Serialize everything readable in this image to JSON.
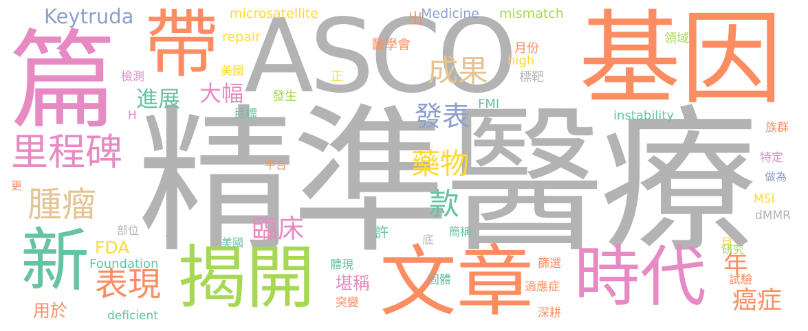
{
  "palette": {
    "gray": "#b3b3b3",
    "orange": "#fc8d62",
    "pink": "#e78ac3",
    "green": "#66c2a5",
    "lime": "#a6d854",
    "yellow": "#ffd92f",
    "tan": "#e5c494",
    "blue": "#8da0cb"
  },
  "words": [
    {
      "text": "精準醫療",
      "color": "#b3b3b3"
    },
    {
      "text": "ASCO",
      "color": "#b3b3b3"
    },
    {
      "text": "基因",
      "color": "#fc8d62"
    },
    {
      "text": "篇",
      "color": "#e78ac3"
    },
    {
      "text": "帶",
      "color": "#fc8d62"
    },
    {
      "text": "新",
      "color": "#66c2a5"
    },
    {
      "text": "揭開",
      "color": "#a6d854"
    },
    {
      "text": "文章",
      "color": "#fc8d62"
    },
    {
      "text": "時代",
      "color": "#e78ac3"
    },
    {
      "text": "里程碑",
      "color": "#e78ac3"
    },
    {
      "text": "腫瘤",
      "color": "#e5c494"
    },
    {
      "text": "表現",
      "color": "#fc8d62"
    },
    {
      "text": "臨床",
      "color": "#e78ac3"
    },
    {
      "text": "款",
      "color": "#66c2a5"
    },
    {
      "text": "藥物",
      "color": "#ffd92f"
    },
    {
      "text": "發表",
      "color": "#8da0cb"
    },
    {
      "text": "成果",
      "color": "#e5c494"
    },
    {
      "text": "大幅",
      "color": "#e78ac3"
    },
    {
      "text": "進展",
      "color": "#66c2a5"
    },
    {
      "text": "年",
      "color": "#fc8d62"
    },
    {
      "text": "癌症",
      "color": "#fc8d62"
    },
    {
      "text": "Keytruda",
      "color": "#8da0cb"
    },
    {
      "text": "microsatellite",
      "color": "#ffd92f"
    },
    {
      "text": "Medicine",
      "color": "#8da0cb"
    },
    {
      "text": "mismatch",
      "color": "#a6d854"
    },
    {
      "text": "出",
      "color": "#fc8d62"
    },
    {
      "text": "repair",
      "color": "#ffd92f"
    },
    {
      "text": "醫學會",
      "color": "#fc8d62"
    },
    {
      "text": "月份",
      "color": "#fc8d62"
    },
    {
      "text": "領域",
      "color": "#a6d854"
    },
    {
      "text": "high",
      "color": "#ffd92f"
    },
    {
      "text": "標靶",
      "color": "#b3b3b3"
    },
    {
      "text": "美國",
      "color": "#ffd92f"
    },
    {
      "text": "正",
      "color": "#ffd92f"
    },
    {
      "text": "檢測",
      "color": "#e78ac3"
    },
    {
      "text": "發生",
      "color": "#a6d854"
    },
    {
      "text": "FMI",
      "color": "#66c2a5"
    },
    {
      "text": "instability",
      "color": "#66c2a5"
    },
    {
      "text": "目標",
      "color": "#66c2a5"
    },
    {
      "text": "H",
      "color": "#e78ac3"
    },
    {
      "text": "族群",
      "color": "#fc8d62"
    },
    {
      "text": "特定",
      "color": "#e78ac3"
    },
    {
      "text": "平台",
      "color": "#fc8d62"
    },
    {
      "text": "做為",
      "color": "#8da0cb"
    },
    {
      "text": "更",
      "color": "#fc8d62"
    },
    {
      "text": "MSI",
      "color": "#ffd92f"
    },
    {
      "text": "dMMR",
      "color": "#b3b3b3"
    },
    {
      "text": "部位",
      "color": "#b3b3b3"
    },
    {
      "text": "首",
      "color": "#b3b3b3"
    },
    {
      "text": "許",
      "color": "#66c2a5"
    },
    {
      "text": "底",
      "color": "#b3b3b3"
    },
    {
      "text": "簡稱",
      "color": "#66c2a5"
    },
    {
      "text": "FDA",
      "color": "#ffd92f"
    },
    {
      "text": "月",
      "color": "#ffd92f"
    },
    {
      "text": "Foundation",
      "color": "#66c2a5"
    },
    {
      "text": "美國",
      "color": "#66c2a5"
    },
    {
      "text": "研究",
      "color": "#a6d854"
    },
    {
      "text": "篩選",
      "color": "#fc8d62"
    },
    {
      "text": "體現",
      "color": "#66c2a5"
    },
    {
      "text": "堪稱",
      "color": "#e78ac3"
    },
    {
      "text": "固體",
      "color": "#66c2a5"
    },
    {
      "text": "適應症",
      "color": "#fc8d62"
    },
    {
      "text": "試驗",
      "color": "#fc8d62"
    },
    {
      "text": "突變",
      "color": "#fc8d62"
    },
    {
      "text": "深耕",
      "color": "#fc8d62"
    },
    {
      "text": "用於",
      "color": "#fc8d62"
    },
    {
      "text": "deficient",
      "color": "#66c2a5"
    }
  ]
}
